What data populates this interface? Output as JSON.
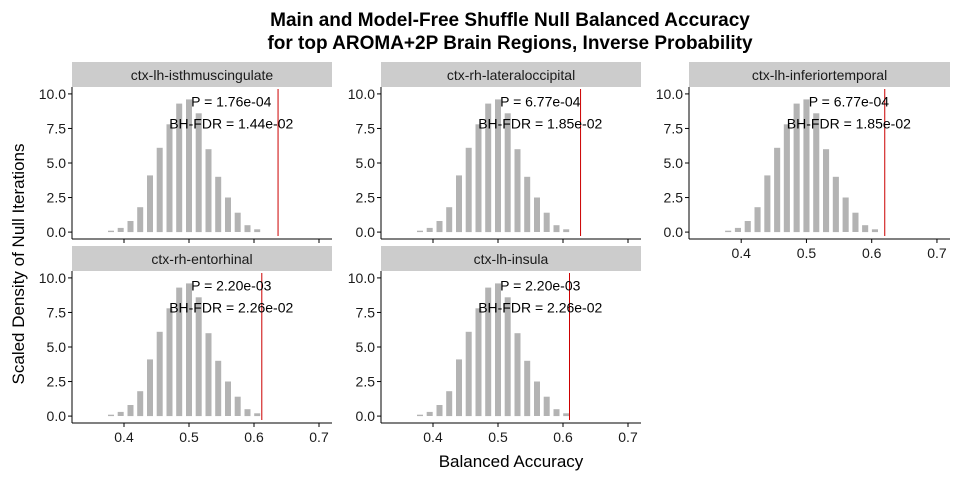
{
  "title_line1": "Main and Model-Free Shuffle Null Balanced Accuracy",
  "title_line2": "for top AROMA+2P Brain Regions, Inverse Probability",
  "xlabel": "Balanced Accuracy",
  "ylabel": "Scaled Density of Null Iterations",
  "chart_data": {
    "type": "bar",
    "title": "Main and Model-Free Shuffle Null Balanced Accuracy for top AROMA+2P Brain Regions, Inverse Probability",
    "xlabel": "Balanced Accuracy",
    "ylabel": "Scaled Density of Null Iterations",
    "xlim": [
      0.32,
      0.72
    ],
    "ylim": [
      -0.5,
      10.5
    ],
    "x_ticks": [
      0.4,
      0.5,
      0.6,
      0.7
    ],
    "x_tick_labels": [
      "0.4",
      "0.5",
      "0.6",
      "0.7"
    ],
    "y_ticks": [
      0,
      2.5,
      5,
      7.5,
      10
    ],
    "y_tick_labels": [
      "0.0",
      "2.5",
      "5.0",
      "7.5",
      "10.0"
    ],
    "bin_centers": [
      0.35,
      0.365,
      0.38,
      0.395,
      0.41,
      0.425,
      0.44,
      0.455,
      0.47,
      0.485,
      0.5,
      0.515,
      0.53,
      0.545,
      0.56,
      0.575,
      0.59,
      0.605,
      0.62
    ],
    "reference_line_color": "#cc0000",
    "bar_color": "#b3b3b3",
    "panels": [
      {
        "region": "ctx-lh-isthmuscingulate",
        "p_label": "P = 1.76e-04",
        "fdr_label": "BH-FDR = 1.44e-02",
        "observed": 0.637,
        "values": [
          0,
          0,
          0.1,
          0.3,
          0.8,
          1.8,
          4.1,
          6.1,
          7.8,
          9.3,
          9.6,
          8.6,
          6.0,
          4.0,
          2.5,
          1.4,
          0.5,
          0.2,
          0
        ]
      },
      {
        "region": "ctx-rh-lateraloccipital",
        "p_label": "P = 6.77e-04",
        "fdr_label": "BH-FDR = 1.85e-02",
        "observed": 0.627,
        "values": [
          0,
          0,
          0.1,
          0.3,
          0.8,
          1.8,
          4.1,
          6.1,
          7.8,
          9.3,
          9.6,
          8.6,
          6.0,
          4.0,
          2.5,
          1.4,
          0.5,
          0.2,
          0
        ]
      },
      {
        "region": "ctx-lh-inferiortemporal",
        "p_label": "P = 6.77e-04",
        "fdr_label": "BH-FDR = 1.85e-02",
        "observed": 0.62,
        "values": [
          0,
          0,
          0.1,
          0.3,
          0.8,
          1.8,
          4.1,
          6.1,
          7.8,
          9.3,
          9.6,
          8.6,
          6.0,
          4.0,
          2.5,
          1.4,
          0.5,
          0.2,
          0
        ]
      },
      {
        "region": "ctx-rh-entorhinal",
        "p_label": "P = 2.20e-03",
        "fdr_label": "BH-FDR = 2.26e-02",
        "observed": 0.612,
        "values": [
          0,
          0,
          0.1,
          0.3,
          0.8,
          1.8,
          4.1,
          6.1,
          7.8,
          9.3,
          9.6,
          8.6,
          6.0,
          4.0,
          2.5,
          1.4,
          0.5,
          0.2,
          0
        ]
      },
      {
        "region": "ctx-lh-insula",
        "p_label": "P = 2.20e-03",
        "fdr_label": "BH-FDR = 2.26e-02",
        "observed": 0.61,
        "values": [
          0,
          0,
          0.1,
          0.3,
          0.8,
          1.8,
          4.1,
          6.1,
          7.8,
          9.3,
          9.6,
          8.6,
          6.0,
          4.0,
          2.5,
          1.4,
          0.5,
          0.2,
          0
        ]
      }
    ]
  }
}
